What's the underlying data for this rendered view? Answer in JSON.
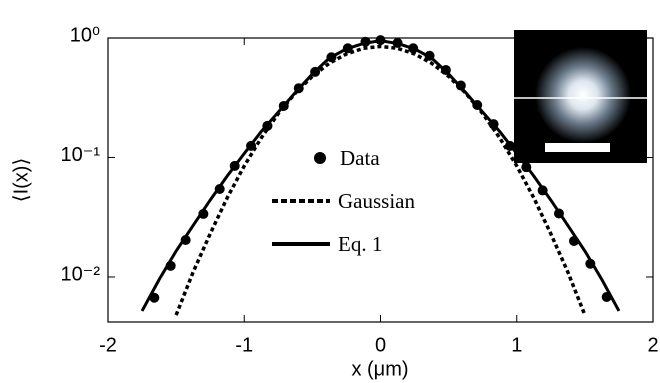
{
  "chart_data": {
    "type": "line",
    "x_label": "x (μm)",
    "y_label": "⟨I(x)⟩",
    "log_y": true,
    "legend": "center",
    "xlim": [
      -2,
      2
    ],
    "xticks": [
      -2,
      -1,
      0,
      1,
      2
    ],
    "ylim": [
      0.0042,
      1
    ],
    "yticks": [
      {
        "value": 0.01,
        "label": "10⁻²"
      },
      {
        "value": 0.1,
        "label": "10⁻¹"
      },
      {
        "value": 1,
        "label": "10⁰"
      }
    ],
    "series": [
      {
        "name": "Data",
        "style": "markers",
        "color": "#000000",
        "x": [
          -1.66,
          -1.54,
          -1.43,
          -1.3,
          -1.18,
          -1.07,
          -0.95,
          -0.83,
          -0.71,
          -0.6,
          -0.48,
          -0.36,
          -0.24,
          -0.11,
          0,
          0.125,
          0.24,
          0.36,
          0.48,
          0.59,
          0.71,
          0.83,
          0.95,
          1.07,
          1.19,
          1.31,
          1.42,
          1.54,
          1.66
        ],
        "values": [
          0.0067,
          0.0124,
          0.0204,
          0.0337,
          0.0545,
          0.085,
          0.125,
          0.184,
          0.27,
          0.38,
          0.52,
          0.69,
          0.82,
          0.93,
          0.96,
          0.91,
          0.82,
          0.71,
          0.54,
          0.4,
          0.275,
          0.19,
          0.125,
          0.083,
          0.053,
          0.034,
          0.02,
          0.0129,
          0.0068
        ]
      },
      {
        "name": "Gaussian",
        "style": "dotted",
        "color": "#000000",
        "x": [
          -1.5,
          -1.375,
          -1.25,
          -1.125,
          -1,
          -0.875,
          -0.75,
          -0.625,
          -0.5,
          -0.375,
          -0.25,
          -0.125,
          0,
          0.125,
          0.25,
          0.375,
          0.5,
          0.625,
          0.75,
          0.875,
          1,
          1.125,
          1.25,
          1.375,
          1.5
        ],
        "values": [
          0.0048,
          0.011,
          0.023,
          0.046,
          0.085,
          0.146,
          0.233,
          0.346,
          0.478,
          0.615,
          0.736,
          0.82,
          0.85,
          0.82,
          0.736,
          0.615,
          0.478,
          0.346,
          0.233,
          0.146,
          0.085,
          0.046,
          0.023,
          0.011,
          0.0048
        ]
      },
      {
        "name": "Eq. 1",
        "style": "solid",
        "color": "#000000",
        "x": [
          -1.75,
          -1.625,
          -1.5,
          -1.375,
          -1.25,
          -1.125,
          -1,
          -0.875,
          -0.75,
          -0.625,
          -0.5,
          -0.375,
          -0.25,
          -0.125,
          0,
          0.125,
          0.25,
          0.375,
          0.5,
          0.625,
          0.75,
          0.875,
          1,
          1.125,
          1.25,
          1.375,
          1.5,
          1.625,
          1.75
        ],
        "values": [
          0.0052,
          0.0095,
          0.0165,
          0.027,
          0.044,
          0.07,
          0.108,
          0.165,
          0.24,
          0.35,
          0.5,
          0.68,
          0.81,
          0.9,
          0.95,
          0.9,
          0.81,
          0.68,
          0.5,
          0.35,
          0.24,
          0.165,
          0.108,
          0.07,
          0.044,
          0.027,
          0.0165,
          0.0095,
          0.0052
        ]
      }
    ]
  }
}
